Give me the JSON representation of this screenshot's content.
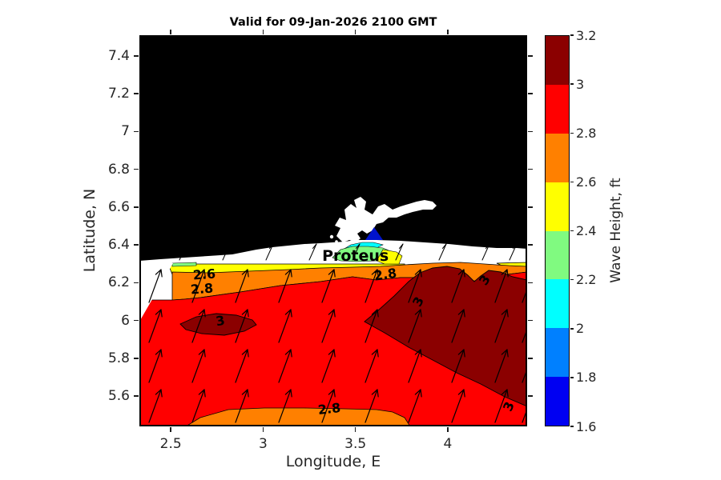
{
  "chart_data": {
    "type": "filled-contour-map",
    "title": "Valid for 09-Jan-2026 2100 GMT",
    "xlabel": "Longitude, E",
    "ylabel": "Latitude, N",
    "xlim": [
      2.33,
      4.43
    ],
    "ylim": [
      5.44,
      7.51
    ],
    "grid": false,
    "xticks": [
      {
        "value": 2.5,
        "label": "2.5"
      },
      {
        "value": 3.0,
        "label": "3"
      },
      {
        "value": 3.5,
        "label": "3.5"
      },
      {
        "value": 4.0,
        "label": "4"
      }
    ],
    "yticks": [
      {
        "value": 5.6,
        "label": "5.6"
      },
      {
        "value": 5.8,
        "label": "5.8"
      },
      {
        "value": 6.0,
        "label": "6"
      },
      {
        "value": 6.2,
        "label": "6.2"
      },
      {
        "value": 6.4,
        "label": "6.4"
      },
      {
        "value": 6.6,
        "label": "6.6"
      },
      {
        "value": 6.8,
        "label": "6.8"
      },
      {
        "value": 7.0,
        "label": "7"
      },
      {
        "value": 7.2,
        "label": "7.2"
      },
      {
        "value": 7.4,
        "label": "7.4"
      }
    ],
    "colorbar": {
      "label": "Wave Height, ft",
      "levels": [
        1.6,
        1.8,
        2.0,
        2.2,
        2.4,
        2.6,
        2.8,
        3.0,
        3.2
      ],
      "tick_labels": [
        "1.6",
        "1.8",
        "2",
        "2.2",
        "2.4",
        "2.6",
        "2.8",
        "3",
        "3.2"
      ],
      "band_colors_low_to_high": [
        "#0000F2",
        "#0080FF",
        "#00FFFF",
        "#80FA80",
        "#FFFF00",
        "#FF8000",
        "#FF0000",
        "#8B0000"
      ]
    },
    "land_color": "#000000",
    "below_lowest_level_color": "#FFFFFF",
    "quiver_arrows": {
      "color": "#000000",
      "direction": "toward NNE"
    },
    "station": {
      "name": "Proteus",
      "marker": "triangle",
      "marker_color": "#0013CC",
      "lon": 3.6,
      "lat": 6.46,
      "label_lon": 3.5,
      "label_lat": 6.34
    },
    "contour_labels": [
      {
        "text": "2.6",
        "lon": 2.68,
        "lat": 6.245,
        "rot": -4
      },
      {
        "text": "2.8",
        "lon": 2.67,
        "lat": 6.17,
        "rot": -4
      },
      {
        "text": "2.8",
        "lon": 3.66,
        "lat": 6.245,
        "rot": -8
      },
      {
        "text": "3",
        "lon": 4.2,
        "lat": 6.215,
        "rot": -55
      },
      {
        "text": "3",
        "lon": 3.84,
        "lat": 6.1,
        "rot": -62
      },
      {
        "text": "3",
        "lon": 2.77,
        "lat": 6.0,
        "rot": -10
      },
      {
        "text": "2.8",
        "lon": 3.36,
        "lat": 5.535,
        "rot": -6
      },
      {
        "text": "3",
        "lon": 4.33,
        "lat": 5.545,
        "rot": -66
      }
    ]
  }
}
